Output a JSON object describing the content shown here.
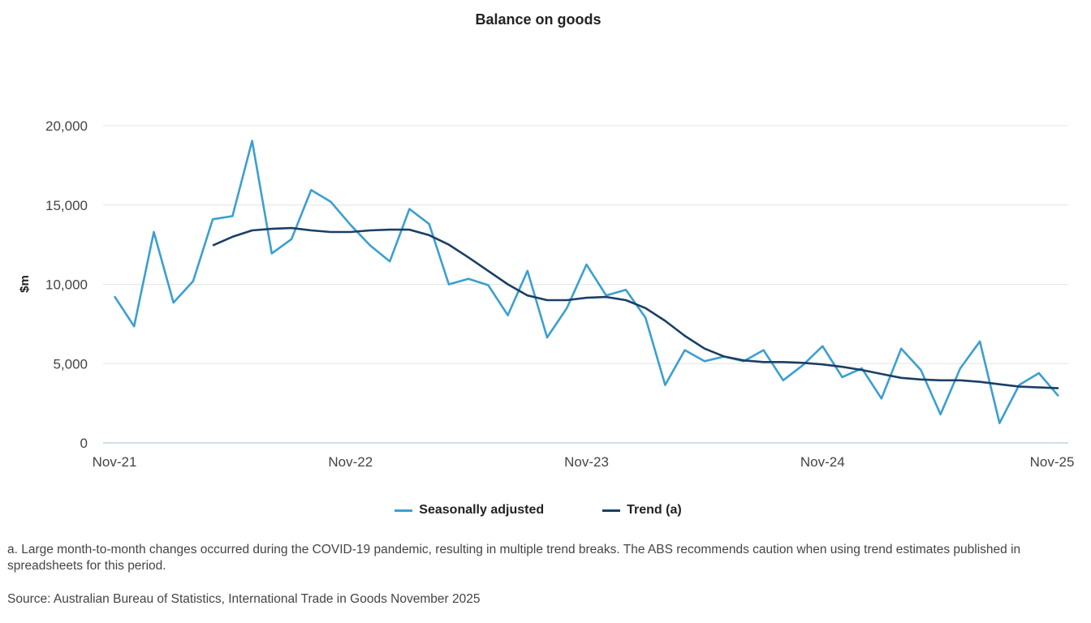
{
  "chart_data": {
    "type": "line",
    "title": "Balance on goods",
    "ylabel": "$m",
    "xlabel": "",
    "ylim": [
      0,
      20000
    ],
    "yticks": [
      0,
      5000,
      10000,
      15000,
      20000
    ],
    "ytick_labels": [
      "0",
      "5,000",
      "10,000",
      "15,000",
      "20,000"
    ],
    "xtick_labels": [
      "Nov-21",
      "Nov-22",
      "Nov-23",
      "Nov-24",
      "Nov-25"
    ],
    "x_start": "Nov-21",
    "x_end": "Nov-25",
    "grid": true,
    "legend": "bottom",
    "series": [
      {
        "name": "Seasonally adjusted",
        "color": "#3b9fd1",
        "start": "Nov-21",
        "values": [
          9250,
          7350,
          13300,
          8850,
          10200,
          14100,
          14300,
          19050,
          11950,
          12850,
          15950,
          15200,
          13750,
          12450,
          11450,
          14750,
          13800,
          10000,
          10350,
          9950,
          8050,
          10850,
          6650,
          8500,
          11250,
          9300,
          9650,
          7900,
          3650,
          5850,
          5150,
          5450,
          5150,
          5850,
          3950,
          4900,
          6100,
          4150,
          4700,
          2800,
          5950,
          4600,
          1800,
          4700,
          6400,
          1250,
          3650,
          4400,
          2950
        ]
      },
      {
        "name": "Trend (a)",
        "color": "#1b3f66",
        "start": "Apr-22",
        "values": [
          12450,
          13000,
          13400,
          13500,
          13550,
          13400,
          13300,
          13300,
          13400,
          13450,
          13450,
          13100,
          12500,
          11700,
          10850,
          10000,
          9300,
          9000,
          9000,
          9150,
          9200,
          9000,
          8500,
          7700,
          6750,
          5950,
          5450,
          5200,
          5100,
          5100,
          5050,
          4950,
          4800,
          4600,
          4350,
          4100,
          4000,
          3950,
          3950,
          3850,
          3700,
          3550,
          3500,
          3450
        ]
      }
    ]
  },
  "footnote": "a. Large month-to-month changes occurred during the COVID-19 pandemic, resulting in multiple trend breaks. The ABS recommends caution when using trend estimates published in spreadsheets for this period.",
  "source": "Source: Australian Bureau of Statistics, International Trade in Goods November 2025"
}
